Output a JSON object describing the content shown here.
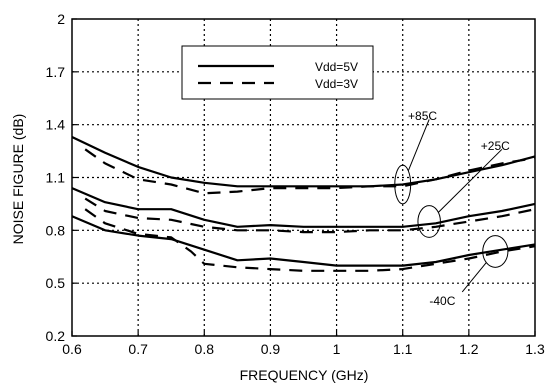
{
  "chart_data": {
    "type": "line",
    "title": "",
    "xlabel": "FREQUENCY (GHz)",
    "ylabel": "NOISE FIGURE (dB)",
    "xlim": [
      0.6,
      1.3
    ],
    "ylim": [
      0.2,
      2.0
    ],
    "xticks": [
      0.6,
      0.7,
      0.8,
      0.9,
      1.0,
      1.1,
      1.2,
      1.3
    ],
    "xtick_labels": [
      "0.6",
      "0.7",
      "0.8",
      "0.9",
      "1",
      "1.1",
      "1.2",
      "1.3"
    ],
    "yticks": [
      0.2,
      0.5,
      0.8,
      1.1,
      1.4,
      1.7,
      2.0
    ],
    "ytick_labels": [
      "0.2",
      "0.5",
      "0.8",
      "1.1",
      "1.4",
      "1.7",
      "2"
    ],
    "grid": true,
    "legend": {
      "placement": "top-center",
      "entries": [
        {
          "label": "Vdd=5V",
          "style": "solid"
        },
        {
          "label": "Vdd=3V",
          "style": "dashed"
        }
      ]
    },
    "series": [
      {
        "label": "+85C",
        "style": "solid",
        "x": [
          0.6,
          0.65,
          0.7,
          0.75,
          0.8,
          0.85,
          0.9,
          0.95,
          1.0,
          1.05,
          1.1,
          1.15,
          1.2,
          1.25,
          1.3
        ],
        "y": [
          1.33,
          1.24,
          1.16,
          1.1,
          1.07,
          1.05,
          1.05,
          1.05,
          1.05,
          1.05,
          1.06,
          1.09,
          1.13,
          1.17,
          1.22
        ]
      },
      {
        "label": "+85C",
        "style": "dashed",
        "x": [
          0.62,
          0.65,
          0.7,
          0.75,
          0.8,
          0.85,
          0.9,
          0.95,
          1.0,
          1.05,
          1.1,
          1.15,
          1.2,
          1.25,
          1.3
        ],
        "y": [
          1.26,
          1.18,
          1.09,
          1.06,
          1.01,
          1.02,
          1.04,
          1.04,
          1.04,
          1.05,
          1.05,
          1.09,
          1.14,
          1.18,
          1.21
        ]
      },
      {
        "label": "+25C",
        "style": "solid",
        "x": [
          0.6,
          0.65,
          0.7,
          0.75,
          0.8,
          0.85,
          0.9,
          0.95,
          1.0,
          1.05,
          1.1,
          1.15,
          1.2,
          1.25,
          1.3
        ],
        "y": [
          1.04,
          0.96,
          0.92,
          0.92,
          0.86,
          0.82,
          0.83,
          0.82,
          0.82,
          0.82,
          0.82,
          0.84,
          0.88,
          0.91,
          0.95
        ]
      },
      {
        "label": "+25C",
        "style": "dashed",
        "x": [
          0.62,
          0.65,
          0.7,
          0.75,
          0.8,
          0.85,
          0.9,
          0.95,
          1.0,
          1.05,
          1.1,
          1.15,
          1.2,
          1.25,
          1.3
        ],
        "y": [
          0.98,
          0.91,
          0.87,
          0.86,
          0.82,
          0.8,
          0.8,
          0.79,
          0.79,
          0.8,
          0.8,
          0.82,
          0.85,
          0.88,
          0.92
        ]
      },
      {
        "label": "-40C",
        "style": "solid",
        "x": [
          0.6,
          0.65,
          0.7,
          0.75,
          0.8,
          0.85,
          0.9,
          0.95,
          1.0,
          1.05,
          1.1,
          1.15,
          1.2,
          1.25,
          1.3
        ],
        "y": [
          0.88,
          0.8,
          0.77,
          0.75,
          0.69,
          0.63,
          0.64,
          0.62,
          0.6,
          0.6,
          0.6,
          0.62,
          0.66,
          0.69,
          0.72
        ]
      },
      {
        "label": "-40C",
        "style": "dashed",
        "x": [
          0.62,
          0.65,
          0.7,
          0.75,
          0.78,
          0.8,
          0.85,
          0.9,
          0.95,
          1.0,
          1.05,
          1.1,
          1.15,
          1.2,
          1.25,
          1.3
        ],
        "y": [
          0.92,
          0.84,
          0.78,
          0.76,
          0.68,
          0.61,
          0.59,
          0.58,
          0.57,
          0.57,
          0.57,
          0.58,
          0.61,
          0.64,
          0.68,
          0.71
        ]
      }
    ],
    "annotations": [
      {
        "text": "+85C",
        "x": 1.13,
        "y": 1.45,
        "ellipse": {
          "cx": 1.1,
          "cy": 1.06,
          "rx": 0.012,
          "ry": 0.11
        },
        "pointer_to": [
          1.14,
          1.43
        ]
      },
      {
        "text": "+25C",
        "x": 1.24,
        "y": 1.28,
        "ellipse": {
          "cx": 1.14,
          "cy": 0.85,
          "rx": 0.017,
          "ry": 0.09
        },
        "pointer_to": [
          1.25,
          1.26
        ]
      },
      {
        "text": "-40C",
        "x": 1.16,
        "y": 0.4,
        "ellipse": {
          "cx": 1.24,
          "cy": 0.68,
          "rx": 0.019,
          "ry": 0.09
        },
        "pointer_to": [
          1.19,
          0.45
        ]
      }
    ]
  }
}
